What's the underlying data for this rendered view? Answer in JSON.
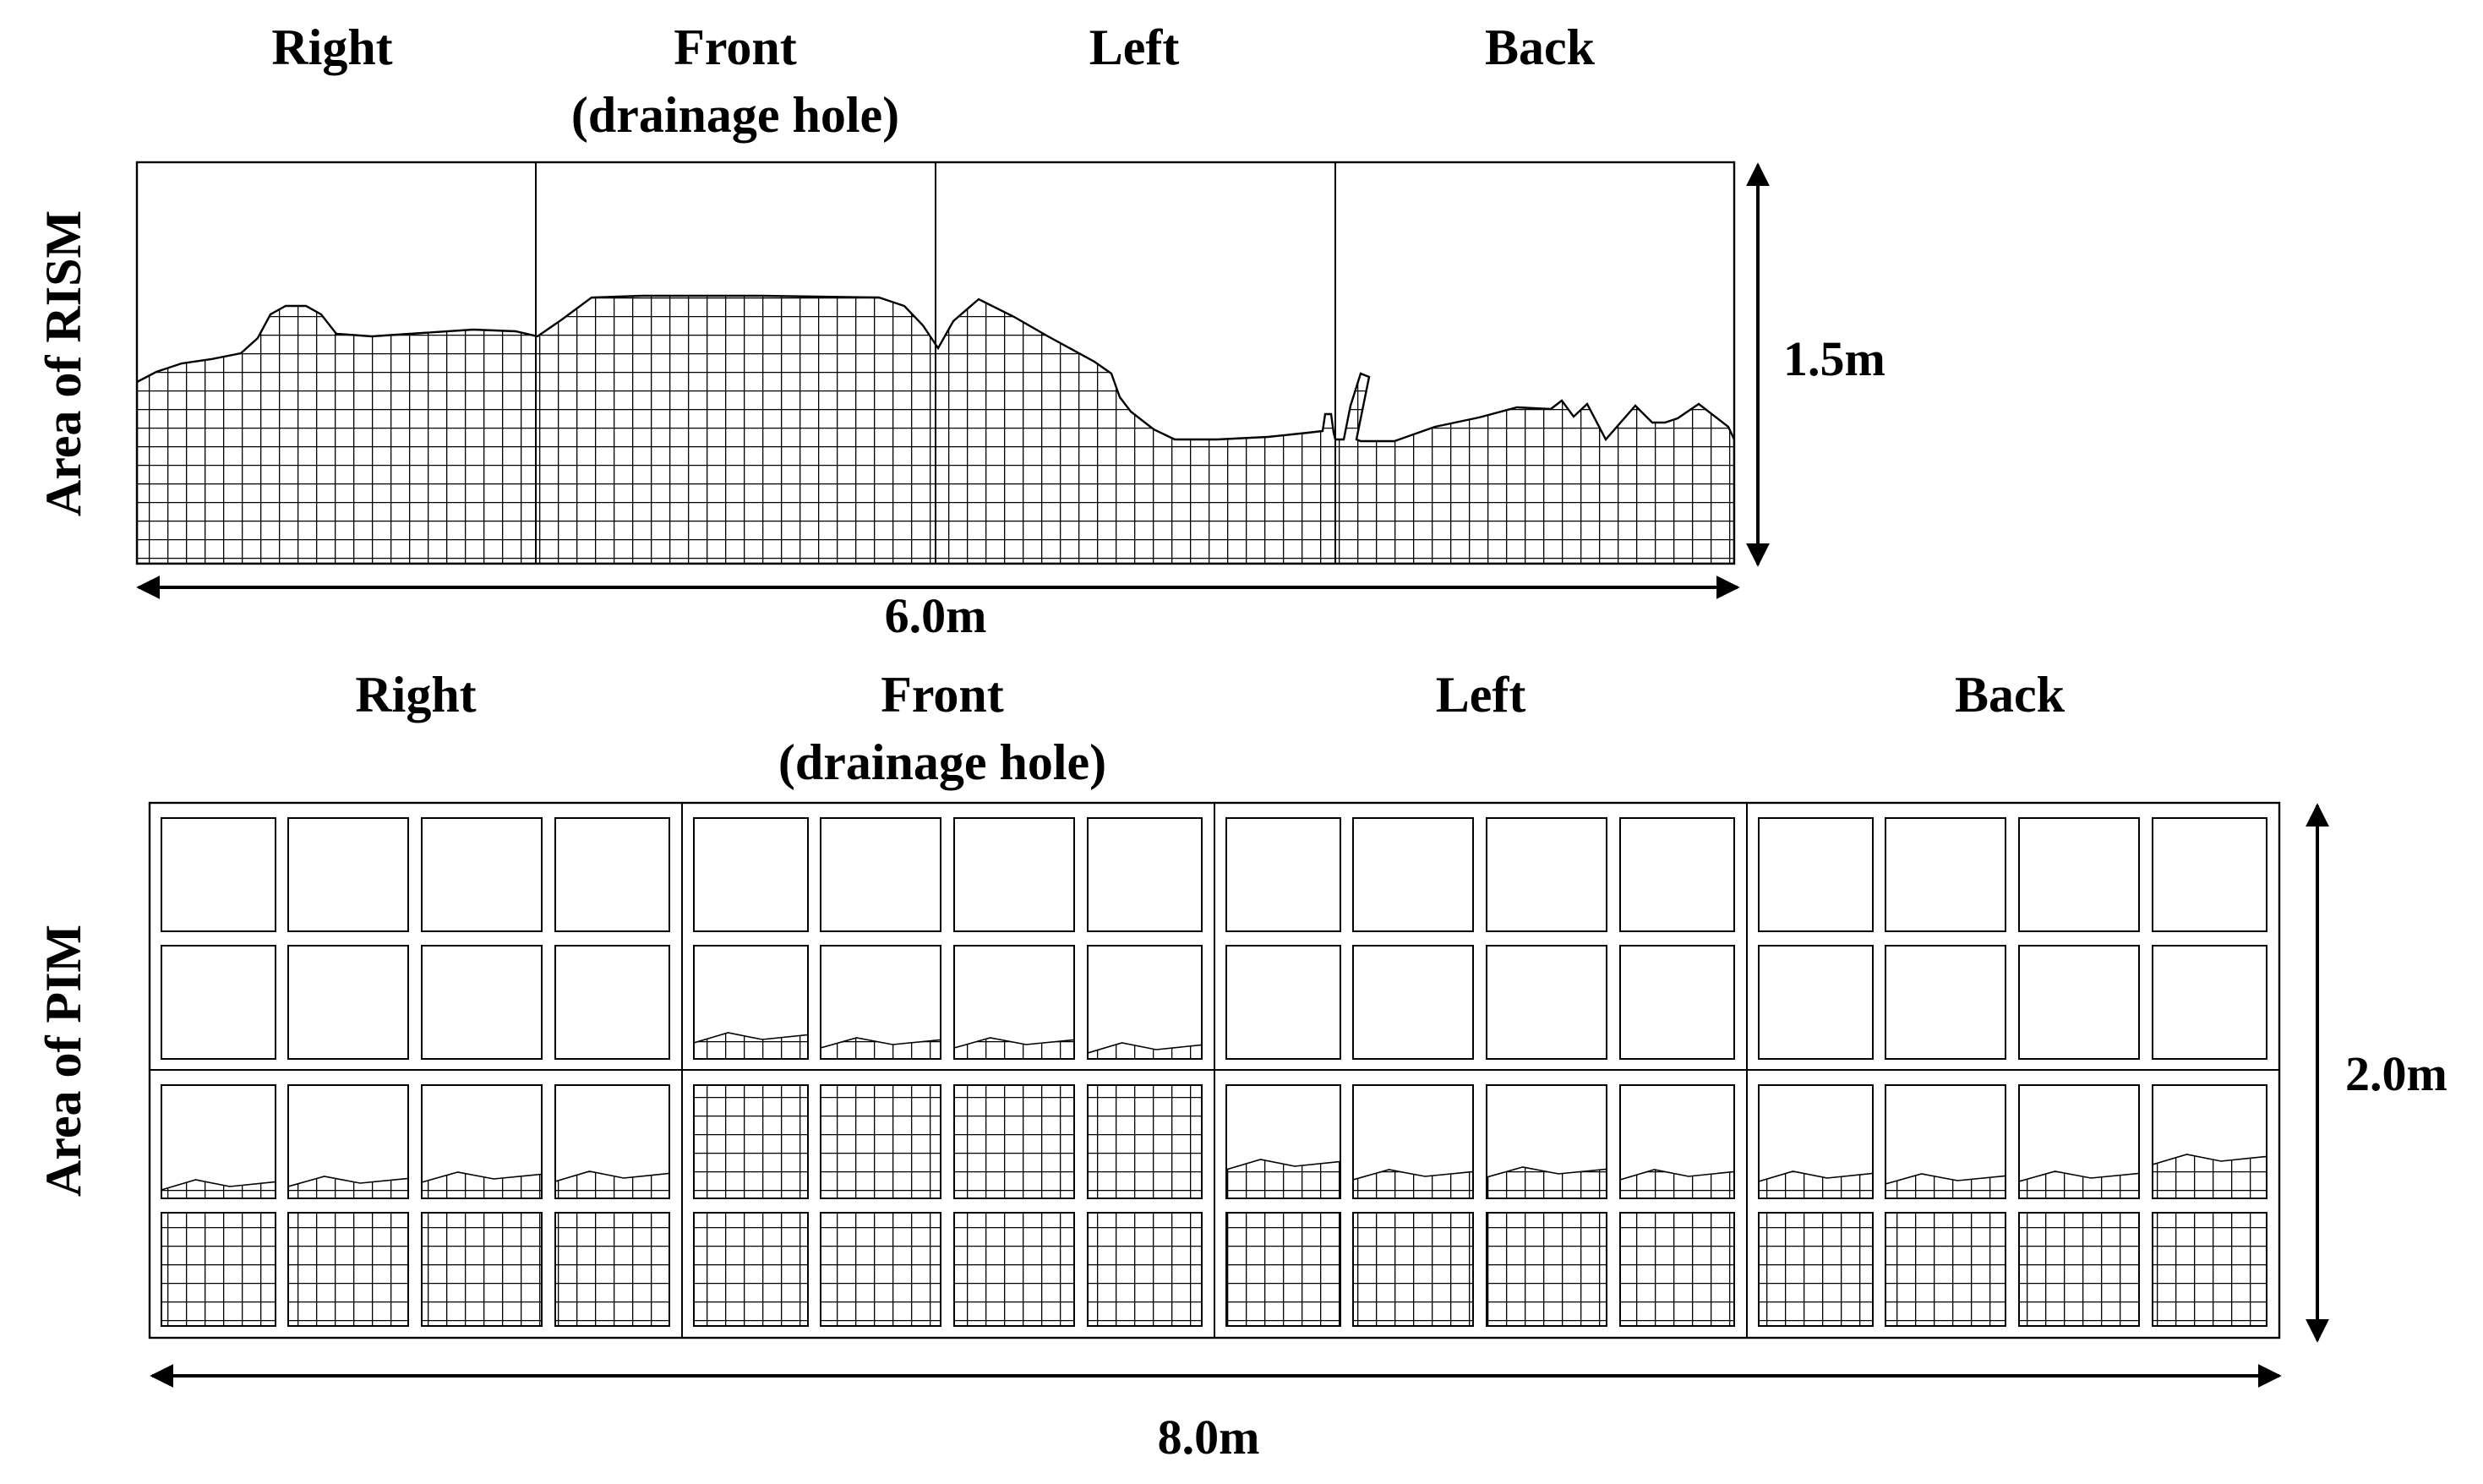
{
  "rism": {
    "y_label": "Area of RISM",
    "sides": [
      {
        "line1": "Right",
        "line2": ""
      },
      {
        "line1": "Front",
        "line2": "(drainage hole)"
      },
      {
        "line1": "Left",
        "line2": ""
      },
      {
        "line1": "Back",
        "line2": ""
      }
    ],
    "width_label": "6.0m",
    "height_label": "1.5m"
  },
  "pim": {
    "y_label": "Area of PIM",
    "sides": [
      {
        "line1": "Right",
        "line2": ""
      },
      {
        "line1": "Front",
        "line2": "(drainage hole)"
      },
      {
        "line1": "Left",
        "line2": ""
      },
      {
        "line1": "Back",
        "line2": ""
      }
    ],
    "width_label": "8.0m",
    "height_label": "2.0m"
  },
  "colors": {
    "line": "#000000",
    "hatch": "#000000",
    "background": "#ffffff"
  }
}
